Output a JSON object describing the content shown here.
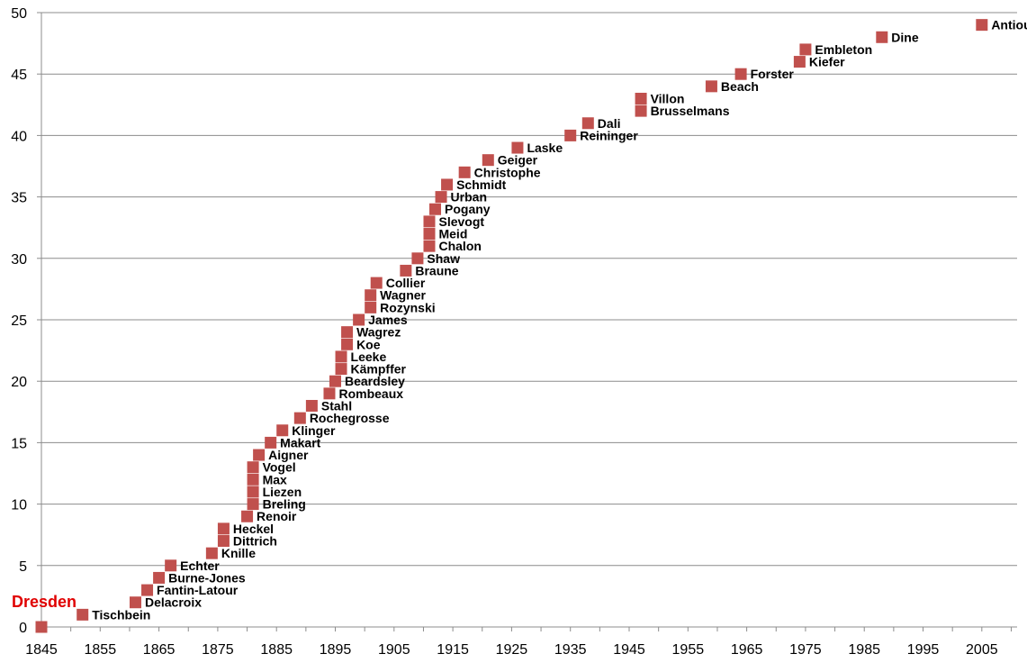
{
  "chart_data": {
    "type": "scatter",
    "title": "",
    "xlabel": "",
    "ylabel": "",
    "xlim": [
      1845,
      2011
    ],
    "ylim": [
      0,
      50
    ],
    "x_ticks": [
      1845,
      1855,
      1865,
      1875,
      1885,
      1895,
      1905,
      1915,
      1925,
      1935,
      1945,
      1955,
      1965,
      1975,
      1985,
      1995,
      2005
    ],
    "y_ticks": [
      0,
      5,
      10,
      15,
      20,
      25,
      30,
      35,
      40,
      45,
      50
    ],
    "grid": "horizontal",
    "marker_color": "#c0504d",
    "annotation": {
      "text": "Dresden",
      "x": 1845,
      "y": 0,
      "color": "#e00000"
    },
    "points": [
      {
        "x": 1845,
        "y": 0,
        "label": ""
      },
      {
        "x": 1852,
        "y": 1,
        "label": "Tischbein"
      },
      {
        "x": 1861,
        "y": 2,
        "label": "Delacroix"
      },
      {
        "x": 1863,
        "y": 3,
        "label": "Fantin-Latour"
      },
      {
        "x": 1865,
        "y": 4,
        "label": "Burne-Jones"
      },
      {
        "x": 1867,
        "y": 5,
        "label": "Echter"
      },
      {
        "x": 1874,
        "y": 6,
        "label": "Knille"
      },
      {
        "x": 1876,
        "y": 7,
        "label": "Dittrich"
      },
      {
        "x": 1876,
        "y": 8,
        "label": "Heckel"
      },
      {
        "x": 1880,
        "y": 9,
        "label": "Renoir"
      },
      {
        "x": 1881,
        "y": 10,
        "label": "Breling"
      },
      {
        "x": 1881,
        "y": 11,
        "label": "Liezen"
      },
      {
        "x": 1881,
        "y": 12,
        "label": "Max"
      },
      {
        "x": 1881,
        "y": 13,
        "label": "Vogel"
      },
      {
        "x": 1882,
        "y": 14,
        "label": "Aigner"
      },
      {
        "x": 1884,
        "y": 15,
        "label": "Makart"
      },
      {
        "x": 1886,
        "y": 16,
        "label": "Klinger"
      },
      {
        "x": 1889,
        "y": 17,
        "label": "Rochegrosse"
      },
      {
        "x": 1891,
        "y": 18,
        "label": "Stahl"
      },
      {
        "x": 1894,
        "y": 19,
        "label": "Rombeaux"
      },
      {
        "x": 1895,
        "y": 20,
        "label": "Beardsley"
      },
      {
        "x": 1896,
        "y": 21,
        "label": "Kämpffer"
      },
      {
        "x": 1896,
        "y": 22,
        "label": "Leeke"
      },
      {
        "x": 1897,
        "y": 23,
        "label": "Koe"
      },
      {
        "x": 1897,
        "y": 24,
        "label": "Wagrez"
      },
      {
        "x": 1899,
        "y": 25,
        "label": "James"
      },
      {
        "x": 1901,
        "y": 26,
        "label": "Rozynski"
      },
      {
        "x": 1901,
        "y": 27,
        "label": "Wagner"
      },
      {
        "x": 1902,
        "y": 28,
        "label": "Collier"
      },
      {
        "x": 1907,
        "y": 29,
        "label": "Braune"
      },
      {
        "x": 1909,
        "y": 30,
        "label": "Shaw"
      },
      {
        "x": 1911,
        "y": 31,
        "label": "Chalon"
      },
      {
        "x": 1911,
        "y": 32,
        "label": "Meid"
      },
      {
        "x": 1911,
        "y": 33,
        "label": "Slevogt"
      },
      {
        "x": 1912,
        "y": 34,
        "label": "Pogany"
      },
      {
        "x": 1913,
        "y": 35,
        "label": "Urban"
      },
      {
        "x": 1914,
        "y": 36,
        "label": "Schmidt"
      },
      {
        "x": 1917,
        "y": 37,
        "label": "Christophe"
      },
      {
        "x": 1921,
        "y": 38,
        "label": "Geiger"
      },
      {
        "x": 1926,
        "y": 39,
        "label": "Laske"
      },
      {
        "x": 1935,
        "y": 40,
        "label": "Reininger"
      },
      {
        "x": 1938,
        "y": 41,
        "label": "Dali"
      },
      {
        "x": 1947,
        "y": 42,
        "label": "Brusselmans"
      },
      {
        "x": 1947,
        "y": 43,
        "label": "Villon"
      },
      {
        "x": 1959,
        "y": 44,
        "label": "Beach"
      },
      {
        "x": 1964,
        "y": 45,
        "label": "Forster"
      },
      {
        "x": 1974,
        "y": 46,
        "label": "Kiefer"
      },
      {
        "x": 1975,
        "y": 47,
        "label": "Embleton"
      },
      {
        "x": 1988,
        "y": 48,
        "label": "Dine"
      },
      {
        "x": 2005,
        "y": 49,
        "label": "Antioukhin"
      }
    ]
  }
}
